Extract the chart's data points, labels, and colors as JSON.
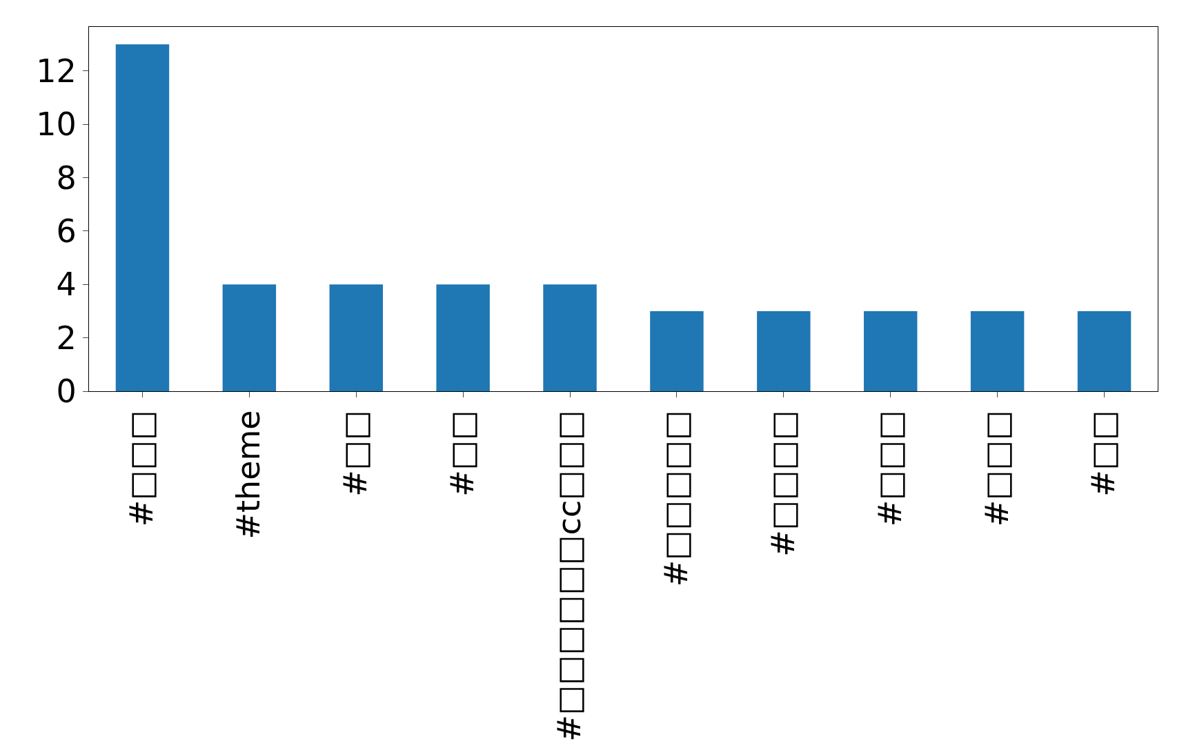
{
  "chart_data": {
    "type": "bar",
    "categories": [
      "#□□□",
      "#theme",
      "#□□",
      "#□□",
      "#□□□□□□cc□□□",
      "#□□□□□",
      "#□□□□",
      "#□□□",
      "#□□□",
      "#□□"
    ],
    "values": [
      13,
      4,
      4,
      4,
      4,
      3,
      3,
      3,
      3,
      3
    ],
    "color": "#1f77b4",
    "ylim": [
      0,
      13.65
    ],
    "yticks": [
      0,
      2,
      4,
      6,
      8,
      10,
      12
    ],
    "legend": false
  }
}
